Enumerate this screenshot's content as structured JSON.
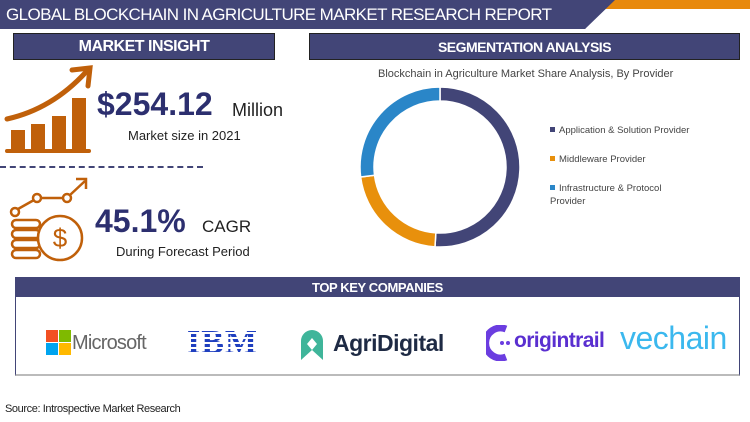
{
  "header": {
    "title": "GLOBAL BLOCKCHAIN IN AGRICULTURE MARKET RESEARCH REPORT"
  },
  "market_insight": {
    "heading": "MARKET INSIGHT",
    "market_size": "$254.12",
    "unit": "Million",
    "market_size_label": "Market size in 2021",
    "cagr": "45.1%",
    "cagr_label": "CAGR",
    "cagr_period": "During Forecast Period",
    "icons": [
      "growth-chart-icon",
      "coins-growth-icon"
    ]
  },
  "segmentation": {
    "heading": "SEGMENTATION ANALYSIS"
  },
  "chart_data": {
    "type": "pie",
    "donut": true,
    "title": "Blockchain in Agriculture Market Share Analysis, By Provider",
    "categories": [
      "Application & Solution Provider",
      "Middleware Provider",
      "Infrastructure & Protocol Provider"
    ],
    "values": [
      51,
      22,
      27
    ],
    "colors": [
      "#424577",
      "#e8900c",
      "#2a86c8"
    ],
    "legend": "right"
  },
  "companies": {
    "heading": "TOP KEY COMPANIES",
    "logos": [
      "Microsoft",
      "IBM",
      "AgriDigital",
      "origintrail",
      "vechain"
    ]
  },
  "source": "Source: Introspective Market Research"
}
